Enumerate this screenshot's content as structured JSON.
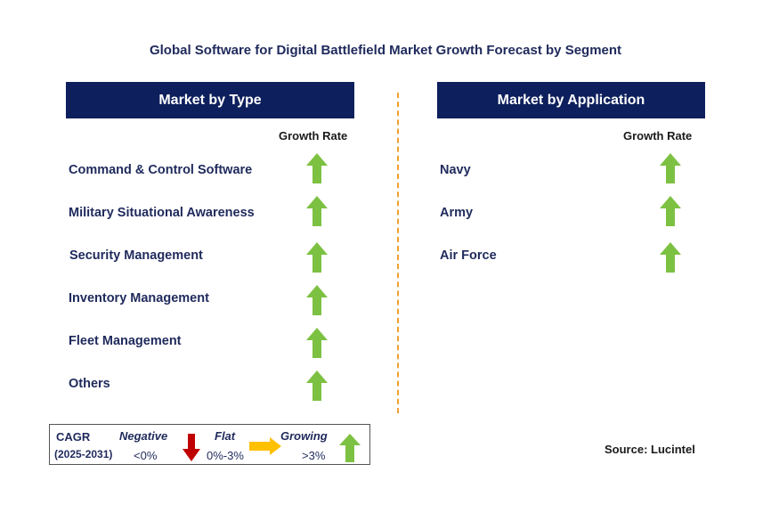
{
  "title": "Global Software for Digital Battlefield Market Growth Forecast by Segment",
  "left_panel": {
    "header": "Market by Type",
    "growth_label": "Growth Rate",
    "items": [
      "Command & Control Software",
      "Military Situational Awareness",
      "Security Management",
      "Inventory Management",
      "Fleet Management",
      "Others"
    ],
    "arrow_icon": "green-up-arrow"
  },
  "right_panel": {
    "header": "Market by Application",
    "growth_label": "Growth Rate",
    "items": [
      "Navy",
      "Army",
      "Air Force"
    ],
    "arrow_icon": "green-up-arrow"
  },
  "legend": {
    "cagr_label": "CAGR",
    "period": "(2025-2031)",
    "negative_label": "Negative",
    "negative_range": "<0%",
    "flat_label": "Flat",
    "flat_range": "0%-3%",
    "growing_label": "Growing",
    "growing_range": ">3%"
  },
  "source": "Source: Lucintel",
  "colors": {
    "header_bg": "#0d1f5c",
    "text": "#1f2a5c",
    "growth_arrow": "#7dc142",
    "negative_arrow": "#c00000",
    "flat_arrow": "#ffc000",
    "divider": "#f0a030"
  }
}
